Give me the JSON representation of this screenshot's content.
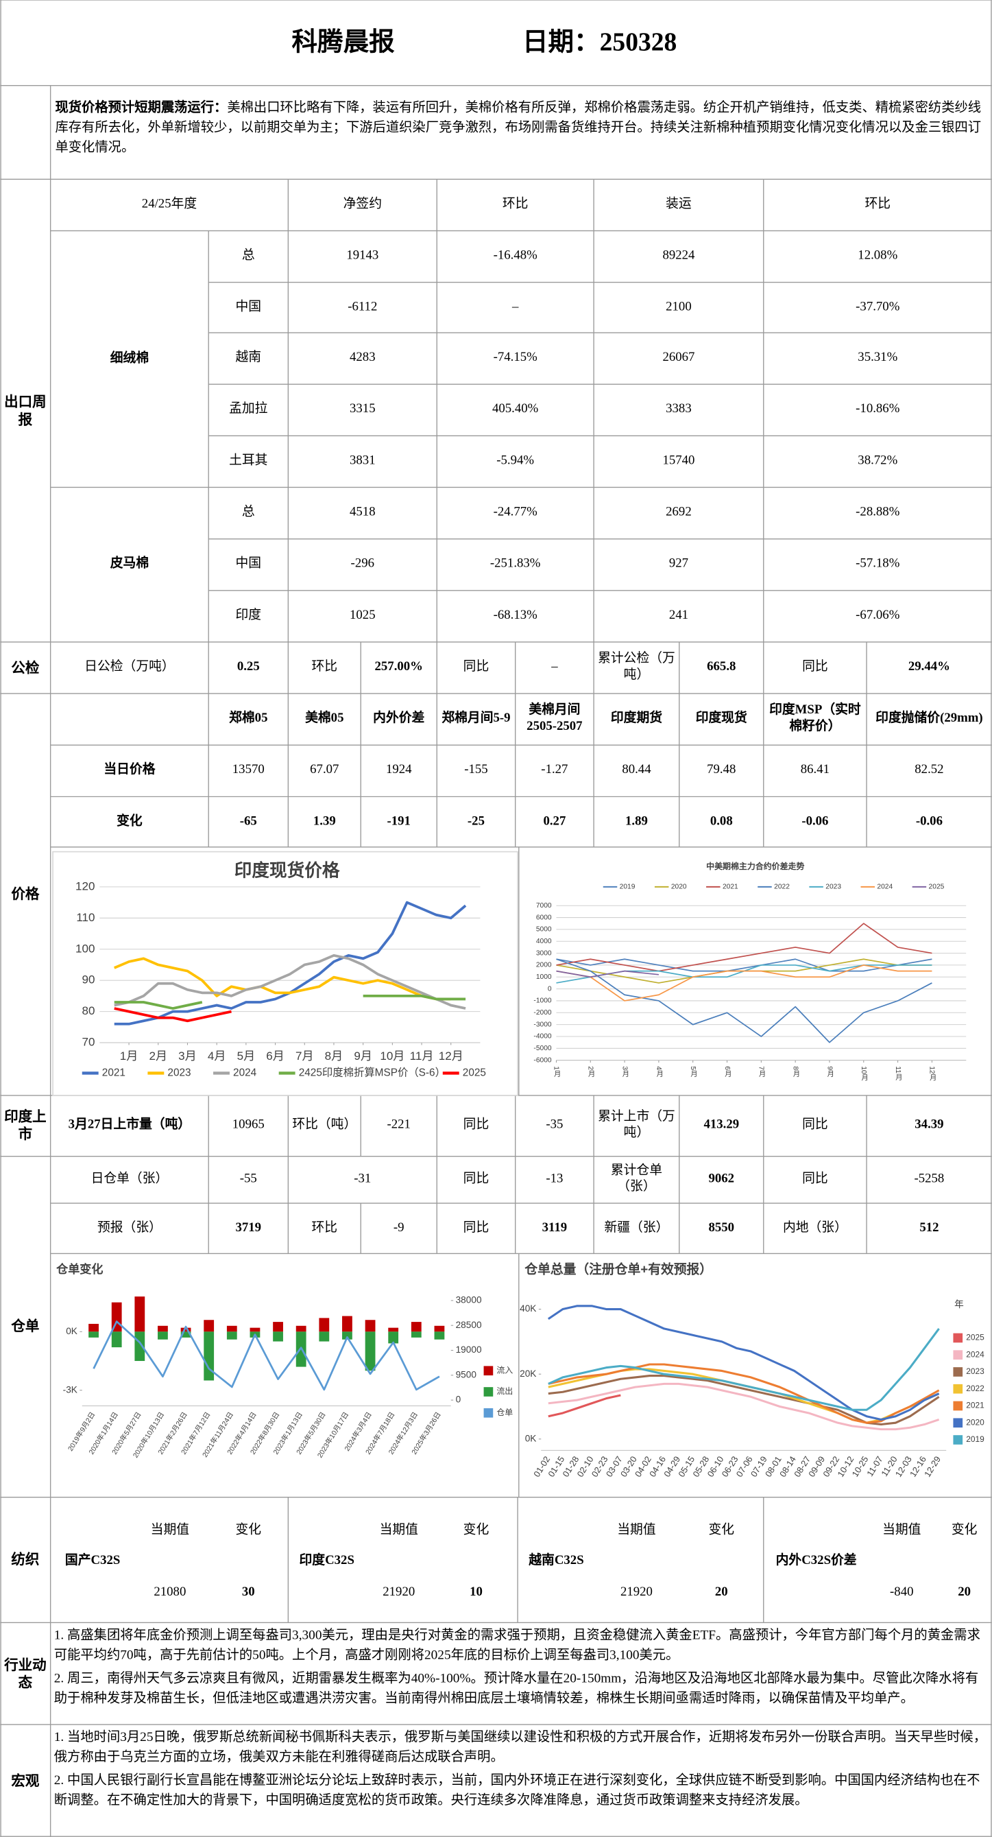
{
  "header": {
    "title": "科腾晨报",
    "date": "日期：250328"
  },
  "summary": {
    "lead": "现货价格预计短期震荡运行：",
    "body": "美棉出口环比略有下降，装运有所回升，美棉价格有所反弹，郑棉价格震荡走弱。纺企开机产销维持，低支类、精梳紧密纺类纱线库存有所去化，外单新增较少，以前期交单为主；下游后道织染厂竞争激烈，布场刚需备货维持开台。持续关注新棉种植预期变化情况变化情况以及金三银四订单变化情况。"
  },
  "export": {
    "section": "出口周报",
    "header": [
      "24/25年度",
      "净签约",
      "环比",
      "装运",
      "环比"
    ],
    "groups": [
      {
        "name": "细绒棉",
        "rows": [
          [
            "总",
            "19143",
            "-16.48%",
            "89224",
            "12.08%"
          ],
          [
            "中国",
            "-6112",
            "–",
            "2100",
            "-37.70%"
          ],
          [
            "越南",
            "4283",
            "-74.15%",
            "26067",
            "35.31%"
          ],
          [
            "孟加拉",
            "3315",
            "405.40%",
            "3383",
            "-10.86%"
          ],
          [
            "土耳其",
            "3831",
            "-5.94%",
            "15740",
            "38.72%"
          ]
        ]
      },
      {
        "name": "皮马棉",
        "rows": [
          [
            "总",
            "4518",
            "-24.77%",
            "2692",
            "-28.88%"
          ],
          [
            "中国",
            "-296",
            "-251.83%",
            "927",
            "-57.18%"
          ],
          [
            "印度",
            "1025",
            "-68.13%",
            "241",
            "-67.06%"
          ]
        ]
      }
    ]
  },
  "inspection": {
    "section": "公检",
    "cells": [
      "日公检（万吨）",
      "0.25",
      "环比",
      "257.00%",
      "同比",
      "–",
      "累计公检（万吨）",
      "665.8",
      "同比",
      "29.44%"
    ]
  },
  "price": {
    "section": "价格",
    "header": [
      "郑棉05",
      "美棉05",
      "内外价差",
      "郑棉月间5-9",
      "美棉月间2505-2507",
      "印度期货",
      "印度现货",
      "印度MSP（实时棉籽价）",
      "印度抛储价(29mm)"
    ],
    "rows": [
      {
        "label": "当日价格",
        "values": [
          "13570",
          "67.07",
          "1924",
          "-155",
          "-1.27",
          "80.44",
          "79.48",
          "86.41",
          "82.52"
        ]
      },
      {
        "label": "变化",
        "values": [
          "-65",
          "1.39",
          "-191",
          "-25",
          "0.27",
          "1.89",
          "0.08",
          "-0.06",
          "-0.06"
        ]
      }
    ]
  },
  "india_arrivals": {
    "section": "印度上市",
    "cells": [
      "3月27日上市量（吨）",
      "10965",
      "环比（吨）",
      "-221",
      "同比",
      "-35",
      "累计上市（万吨）",
      "413.29",
      "同比",
      "34.39"
    ]
  },
  "warehouse": {
    "section": "仓单",
    "rows": [
      [
        "日仓单（张）",
        "-55",
        "-31",
        "同比",
        "-13",
        "累计仓单（张）",
        "9062",
        "同比",
        "-5258"
      ],
      [
        "预报（张）",
        "3719",
        "环比",
        "-9",
        "同比",
        "3119",
        "新疆（张）",
        "8550",
        "内地（张）",
        "512"
      ]
    ]
  },
  "textile": {
    "section": "纺织",
    "items": [
      {
        "name": "国产C32S",
        "current_label": "当期值",
        "change_label": "变化",
        "current": "21080",
        "change": "30"
      },
      {
        "name": "印度C32S",
        "current_label": "当期值",
        "change_label": "变化",
        "current": "21920",
        "change": "10"
      },
      {
        "name": "越南C32S",
        "current_label": "当期值",
        "change_label": "变化",
        "current": "21920",
        "change": "20"
      },
      {
        "name": "内外C32S价差",
        "current_label": "当期值",
        "change_label": "变化",
        "current": "-840",
        "change": "20"
      }
    ]
  },
  "industry": {
    "section": "行业动态",
    "items": [
      "1. 高盛集团将年底金价预测上调至每盎司3,300美元，理由是央行对黄金的需求强于预期，且资金稳健流入黄金ETF。高盛预计，今年官方部门每个月的黄金需求可能平均约70吨，高于先前估计的50吨。上个月，高盛才刚刚将2025年底的目标价上调至每盎司3,100美元。",
      "2. 周三，南得州天气多云凉爽且有微风，近期雷暴发生概率为40%-100%。预计降水量在20-150mm，沿海地区及沿海地区北部降水最为集中。尽管此次降水将有助于棉种发芽及棉苗生长，但低洼地区或遭遇洪涝灾害。当前南得州棉田底层土壤墒情较差，棉株生长期间亟需适时降雨，以确保苗情及平均单产。"
    ]
  },
  "macro": {
    "section": "宏观",
    "items": [
      "1. 当地时间3月25日晚，俄罗斯总统新闻秘书佩斯科夫表示，俄罗斯与美国继续以建设性和积极的方式开展合作，近期将发布另外一份联合声明。当天早些时候，俄方称由于乌克兰方面的立场，俄美双方未能在利雅得磋商后达成联合声明。",
      "2. 中国人民银行副行长宣昌能在博鳌亚洲论坛分论坛上致辞时表示，当前，国内外环境正在进行深刻变化，全球供应链不断受到影响。中国国内经济结构也在不断调整。在不确定性加大的背景下，中国明确适度宽松的货币政策。央行连续多次降准降息，通过货币政策调整来支持经济发展。"
    ]
  },
  "chart_data": [
    {
      "type": "line",
      "title": "印度现货价格",
      "x": [
        0.5,
        1,
        1.5,
        2,
        2.5,
        3,
        3.5,
        4,
        4.5,
        5,
        5.5,
        6,
        6.5,
        7,
        7.5,
        8,
        8.5,
        9,
        9.5,
        10,
        10.5,
        11,
        11.5,
        12,
        12.5
      ],
      "xlim": [
        0,
        13
      ],
      "xticks": [
        {
          "value": 1,
          "label": "1月"
        },
        {
          "value": 2,
          "label": "2月"
        },
        {
          "value": 3,
          "label": "3月"
        },
        {
          "value": 4,
          "label": "4月"
        },
        {
          "value": 5,
          "label": "5月"
        },
        {
          "value": 6,
          "label": "6月"
        },
        {
          "value": 7,
          "label": "7月"
        },
        {
          "value": 8,
          "label": "8月"
        },
        {
          "value": 9,
          "label": "9月"
        },
        {
          "value": 10,
          "label": "10月"
        },
        {
          "value": 11,
          "label": "11月"
        },
        {
          "value": 12,
          "label": "12月"
        }
      ],
      "ylim": [
        70,
        120
      ],
      "yticks": [
        70,
        80,
        90,
        100,
        110,
        120
      ],
      "grid": true,
      "legend": "bottom",
      "series": [
        {
          "name": "2021",
          "color": "#4472c4",
          "values": [
            76,
            76,
            77,
            78,
            80,
            80,
            81,
            82,
            81,
            83,
            83,
            84,
            86,
            89,
            92,
            96,
            98,
            97,
            99,
            105,
            115,
            113,
            111,
            110,
            114
          ]
        },
        {
          "name": "2023",
          "color": "#ffc000",
          "values": [
            94,
            96,
            97,
            95,
            94,
            93,
            90,
            85,
            88,
            87,
            88,
            86,
            86,
            87,
            88,
            91,
            90,
            89,
            90,
            89,
            87,
            85,
            84,
            84,
            null
          ]
        },
        {
          "name": "2024",
          "color": "#a5a5a5",
          "values": [
            82,
            83,
            85,
            89,
            89,
            87,
            86,
            86,
            85,
            87,
            88,
            90,
            92,
            95,
            96,
            98,
            97,
            95,
            92,
            90,
            88,
            86,
            84,
            82,
            81
          ]
        },
        {
          "name": "2425印度棉折算MSP价（S-6）",
          "color": "#70ad47",
          "values": [
            83,
            83,
            83,
            82,
            81,
            82,
            83,
            null,
            null,
            null,
            null,
            null,
            null,
            null,
            null,
            null,
            null,
            85,
            85,
            85,
            85,
            85,
            84,
            84,
            84
          ]
        },
        {
          "name": "2025",
          "color": "#ff0000",
          "values": [
            81,
            80,
            79,
            78,
            78,
            77,
            78,
            79,
            80,
            null,
            null,
            null,
            null,
            null,
            null,
            null,
            null,
            null,
            null,
            null,
            null,
            null,
            null,
            null,
            null
          ]
        }
      ]
    },
    {
      "type": "line",
      "title": "中美期棉主力合约价差走势",
      "x": [
        1,
        2,
        3,
        4,
        5,
        6,
        7,
        8,
        9,
        10,
        11,
        12
      ],
      "xlim": [
        1,
        13
      ],
      "xticks": [
        {
          "value": 1,
          "label": "1月"
        },
        {
          "value": 2,
          "label": "2月"
        },
        {
          "value": 3,
          "label": "3月"
        },
        {
          "value": 4,
          "label": "4月"
        },
        {
          "value": 5,
          "label": "5月"
        },
        {
          "value": 6,
          "label": "6月"
        },
        {
          "value": 7,
          "label": "7月"
        },
        {
          "value": 8,
          "label": "8月"
        },
        {
          "value": 9,
          "label": "9月"
        },
        {
          "value": 10,
          "label": "10月"
        },
        {
          "value": 11,
          "label": "11月"
        },
        {
          "value": 12,
          "label": "12月"
        }
      ],
      "ylim": [
        -6000,
        7000
      ],
      "yticks": [
        -6000,
        -5000,
        -4000,
        -3000,
        -2000,
        -1000,
        0,
        1000,
        2000,
        3000,
        4000,
        5000,
        6000,
        7000
      ],
      "grid": true,
      "legend": "top",
      "series": [
        {
          "name": "2019",
          "color": "#4f81bd",
          "values": [
            2500,
            2000,
            2500,
            2000,
            1500,
            1500,
            2000,
            2500,
            1500,
            1500,
            2000,
            2500
          ]
        },
        {
          "name": "2020",
          "color": "#c0b030",
          "values": [
            2000,
            1500,
            1000,
            500,
            1000,
            1500,
            1500,
            1500,
            2000,
            2500,
            2000,
            2000
          ]
        },
        {
          "name": "2021",
          "color": "#c0504d",
          "values": [
            2000,
            2500,
            2000,
            1500,
            2000,
            2500,
            3000,
            3500,
            3000,
            5500,
            3500,
            3000
          ]
        },
        {
          "name": "2022",
          "color": "#4a7ebb",
          "values": [
            2500,
            1500,
            -500,
            -1000,
            -3000,
            -2000,
            -4000,
            -1500,
            -4500,
            -2000,
            -1000,
            500
          ]
        },
        {
          "name": "2023",
          "color": "#4bacc6",
          "values": [
            500,
            1000,
            1500,
            1500,
            1000,
            1000,
            2000,
            2000,
            1500,
            2000,
            2000,
            2000
          ]
        },
        {
          "name": "2024",
          "color": "#f79646",
          "values": [
            1500,
            1000,
            -1000,
            -500,
            1000,
            1500,
            1500,
            1000,
            1000,
            2000,
            1500,
            1500
          ]
        },
        {
          "name": "2025",
          "color": "#8064a2",
          "values": [
            1500,
            1000,
            1500,
            1200,
            null,
            null,
            null,
            null,
            null,
            null,
            null,
            null
          ]
        }
      ]
    },
    {
      "type": "combo",
      "title": "仓单变化",
      "categories": [
        "2019年9月2日",
        "2020年1月14日",
        "2020年5月27日",
        "2020年10月13日",
        "2021年2月26日",
        "2021年7月12日",
        "2021年11月24日",
        "2022年4月14日",
        "2022年8月30日",
        "2023年1月13日",
        "2023年5月30日",
        "2023年10月17日",
        "2024年3月4日",
        "2024年7月18日",
        "2024年12月3日",
        "2025年3月26日"
      ],
      "ylim": [
        -3800,
        2200
      ],
      "yticks": [
        {
          "value": 0,
          "label": "0K"
        },
        {
          "value": -3000,
          "label": "-3K"
        }
      ],
      "y2lim": [
        -2200,
        42500
      ],
      "y2ticks": [
        0,
        9500,
        19000,
        28500,
        38000
      ],
      "legend": "right",
      "series": [
        {
          "name": "流入",
          "type": "bar",
          "color": "#c00000",
          "values": [
            400,
            1500,
            1800,
            300,
            200,
            600,
            300,
            200,
            500,
            300,
            700,
            800,
            600,
            200,
            500,
            300
          ]
        },
        {
          "name": "流出",
          "type": "bar",
          "color": "#2e9b3e",
          "values": [
            -300,
            -800,
            -1500,
            -400,
            -300,
            -2500,
            -400,
            -300,
            -500,
            -1800,
            -500,
            -400,
            -2000,
            -600,
            -300,
            -400
          ]
        },
        {
          "name": "仓单",
          "type": "line",
          "axis": "y2",
          "color": "#5b9bd5",
          "values": [
            12000,
            30000,
            22000,
            9000,
            28000,
            12000,
            5000,
            25000,
            8000,
            20000,
            4000,
            24000,
            10000,
            22000,
            4000,
            9000
          ]
        }
      ]
    },
    {
      "type": "line",
      "title": "仓单总量（注册仓单+有效预报）",
      "categories": [
        "01-02",
        "01-15",
        "01-28",
        "02-10",
        "02-23",
        "03-07",
        "03-20",
        "04-02",
        "04-16",
        "04-29",
        "05-15",
        "05-28",
        "06-10",
        "06-23",
        "07-06",
        "07-19",
        "08-01",
        "08-14",
        "08-27",
        "09-09",
        "09-22",
        "10-12",
        "10-25",
        "11-07",
        "11-20",
        "12-03",
        "12-16",
        "12-29"
      ],
      "ylim": [
        -3500,
        44500
      ],
      "yticks": [
        {
          "value": 0,
          "label": "0K"
        },
        {
          "value": 20000,
          "label": "20K"
        },
        {
          "value": 40000,
          "label": "40K"
        }
      ],
      "legend": "right",
      "legend_title": "年",
      "series": [
        {
          "name": "2025",
          "color": "#e15759",
          "values": [
            7000,
            8000,
            9500,
            11000,
            12500,
            13500,
            null,
            null,
            null,
            null,
            null,
            null,
            null,
            null,
            null,
            null,
            null,
            null,
            null,
            null,
            null,
            null,
            null,
            null,
            null,
            null,
            null,
            null
          ]
        },
        {
          "name": "2024",
          "color": "#f4b6c2",
          "values": [
            11000,
            11500,
            12000,
            13000,
            14000,
            15000,
            16000,
            16500,
            17000,
            17000,
            16500,
            16000,
            15000,
            14000,
            13000,
            11500,
            10000,
            9000,
            8000,
            6500,
            5000,
            4000,
            3500,
            3000,
            3000,
            3500,
            4500,
            6000
          ]
        },
        {
          "name": "2023",
          "color": "#9c6b4e",
          "values": [
            14000,
            14500,
            15500,
            16500,
            17500,
            18500,
            19000,
            19500,
            19500,
            19000,
            18500,
            18000,
            17000,
            16000,
            15000,
            14000,
            13000,
            12000,
            11000,
            10000,
            9000,
            7000,
            5000,
            4500,
            5000,
            7000,
            10000,
            13000
          ]
        },
        {
          "name": "2022",
          "color": "#f1c232",
          "values": [
            16000,
            17000,
            18000,
            19000,
            20000,
            21000,
            21500,
            21500,
            21000,
            20500,
            20000,
            19000,
            18000,
            17000,
            16000,
            15000,
            14000,
            12500,
            11000,
            9500,
            8000,
            6000,
            5000,
            6000,
            8000,
            10000,
            12000,
            14000
          ]
        },
        {
          "name": "2021",
          "color": "#ed7d31",
          "values": [
            17000,
            18000,
            19000,
            19500,
            20000,
            21000,
            22000,
            23000,
            23000,
            22500,
            22000,
            21500,
            21000,
            20000,
            19000,
            17500,
            16000,
            14000,
            12000,
            10000,
            8000,
            6000,
            5000,
            5500,
            8000,
            10000,
            12500,
            15000
          ]
        },
        {
          "name": "2020",
          "color": "#4472c4",
          "values": [
            37000,
            40000,
            41000,
            41000,
            40000,
            40000,
            38000,
            36000,
            34000,
            33000,
            32000,
            31000,
            30000,
            28000,
            27000,
            25000,
            23000,
            21000,
            18000,
            15000,
            12000,
            9000,
            7000,
            6000,
            7000,
            9000,
            12000,
            14000
          ]
        },
        {
          "name": "2019",
          "color": "#4bacc6",
          "values": [
            17000,
            19000,
            20000,
            21000,
            22000,
            22500,
            22000,
            21000,
            20000,
            19500,
            19000,
            18500,
            18000,
            17000,
            16000,
            15000,
            14000,
            13000,
            12000,
            11000,
            10000,
            9000,
            9000,
            12000,
            17000,
            22000,
            28000,
            34000
          ]
        }
      ]
    }
  ]
}
